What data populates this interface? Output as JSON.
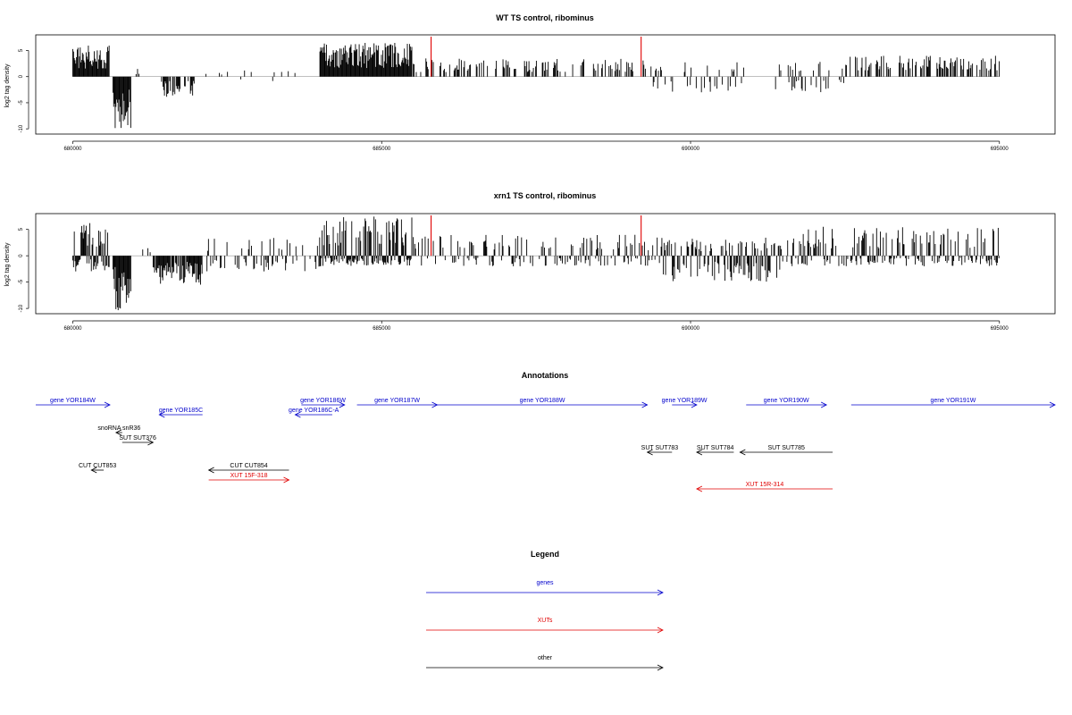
{
  "chart_data": [
    {
      "type": "bar",
      "title": "WT TS control, ribominus",
      "ylabel": "log2 tag density",
      "xlabel": "",
      "xlim": [
        679400,
        695900
      ],
      "ylim": [
        -11,
        8
      ],
      "xticks": [
        680000,
        685000,
        690000,
        695000
      ],
      "yticks": [
        -10,
        -5,
        0,
        5
      ],
      "grid": false,
      "markers": [
        {
          "x": 685800,
          "color": "#e00000"
        },
        {
          "x": 689200,
          "color": "#e00000"
        }
      ],
      "profile": [
        {
          "start": 680000,
          "end": 680600,
          "min": -0.5,
          "max": 6,
          "density": 1
        },
        {
          "start": 680650,
          "end": 680950,
          "min": -10,
          "max": 1.5,
          "density": 1
        },
        {
          "start": 681000,
          "end": 681300,
          "min": -0.3,
          "max": 1.5,
          "density": 0.12
        },
        {
          "start": 681400,
          "end": 682000,
          "min": -4,
          "max": 1,
          "density": 0.6
        },
        {
          "start": 682000,
          "end": 684000,
          "min": -1,
          "max": 1.5,
          "density": 0.04
        },
        {
          "start": 684000,
          "end": 685500,
          "min": -0.5,
          "max": 6.5,
          "density": 1
        },
        {
          "start": 685500,
          "end": 689300,
          "min": -0.3,
          "max": 3.5,
          "density": 0.3
        },
        {
          "start": 689300,
          "end": 689600,
          "min": -3.2,
          "max": 2,
          "density": 0.4
        },
        {
          "start": 689600,
          "end": 692500,
          "min": -3,
          "max": 3,
          "density": 0.22
        },
        {
          "start": 692500,
          "end": 695000,
          "min": -0.2,
          "max": 4,
          "density": 0.45
        }
      ]
    },
    {
      "type": "bar",
      "title": "xrn1 TS control, ribominus",
      "ylabel": "log2 tag density",
      "xlabel": "",
      "xlim": [
        679400,
        695900
      ],
      "ylim": [
        -11,
        8
      ],
      "xticks": [
        680000,
        685000,
        690000,
        695000
      ],
      "yticks": [
        -10,
        -5,
        0,
        5
      ],
      "grid": false,
      "markers": [
        {
          "x": 685800,
          "color": "#e00000"
        },
        {
          "x": 689200,
          "color": "#e00000"
        }
      ],
      "profile": [
        {
          "start": 680000,
          "end": 680600,
          "min": -3,
          "max": 6.5,
          "density": 1
        },
        {
          "start": 680650,
          "end": 680950,
          "min": -10.5,
          "max": 1.5,
          "density": 1
        },
        {
          "start": 681000,
          "end": 681300,
          "min": -0.5,
          "max": 1.5,
          "density": 0.2
        },
        {
          "start": 681300,
          "end": 682100,
          "min": -5.5,
          "max": 1.5,
          "density": 0.9
        },
        {
          "start": 682100,
          "end": 684000,
          "min": -3,
          "max": 3.5,
          "density": 0.3
        },
        {
          "start": 684000,
          "end": 685500,
          "min": -2,
          "max": 7.5,
          "density": 1
        },
        {
          "start": 685500,
          "end": 689500,
          "min": -2,
          "max": 4,
          "density": 0.45
        },
        {
          "start": 689500,
          "end": 691500,
          "min": -5,
          "max": 3.5,
          "density": 0.7
        },
        {
          "start": 691500,
          "end": 695000,
          "min": -2,
          "max": 5.5,
          "density": 0.6
        }
      ]
    }
  ],
  "annotations": {
    "title": "Annotations",
    "xlim": [
      679400,
      695900
    ],
    "features": [
      {
        "label": "gene YOR184W",
        "kind": "gene",
        "color": "#0000cc",
        "start": 679400,
        "end": 680600,
        "strand": "+",
        "row": 0
      },
      {
        "label": "gene YOR185C",
        "kind": "gene",
        "color": "#0000cc",
        "start": 681400,
        "end": 682100,
        "strand": "-",
        "row": 1
      },
      {
        "label": "gene YOR186W",
        "kind": "gene",
        "color": "#0000cc",
        "start": 683700,
        "end": 684400,
        "strand": "+",
        "row": 0
      },
      {
        "label": "gene YOR186C-A",
        "kind": "gene",
        "color": "#0000cc",
        "start": 683600,
        "end": 684200,
        "strand": "-",
        "row": 1
      },
      {
        "label": "gene YOR187W",
        "kind": "gene",
        "color": "#0000cc",
        "start": 684600,
        "end": 685900,
        "strand": "+",
        "row": 0
      },
      {
        "label": "gene YOR188W",
        "kind": "gene",
        "color": "#0000cc",
        "start": 685900,
        "end": 689300,
        "strand": "+",
        "row": 0
      },
      {
        "label": "gene YOR189W",
        "kind": "gene",
        "color": "#0000cc",
        "start": 689700,
        "end": 690100,
        "strand": "+",
        "row": 0
      },
      {
        "label": "gene YOR190W",
        "kind": "gene",
        "color": "#0000cc",
        "start": 690900,
        "end": 692200,
        "strand": "+",
        "row": 0
      },
      {
        "label": "gene YOR191W",
        "kind": "gene",
        "color": "#0000cc",
        "start": 692600,
        "end": 695900,
        "strand": "+",
        "row": 0
      },
      {
        "label": "snoRNA snR36",
        "kind": "other",
        "color": "#000000",
        "start": 680700,
        "end": 680800,
        "strand": "-",
        "row": 2
      },
      {
        "label": "SUT SUT376",
        "kind": "other",
        "color": "#000000",
        "start": 680800,
        "end": 681300,
        "strand": "+",
        "row": 3
      },
      {
        "label": "CUT CUT853",
        "kind": "other",
        "color": "#000000",
        "start": 680300,
        "end": 680500,
        "strand": "-",
        "row": 5
      },
      {
        "label": "CUT CUT854",
        "kind": "other",
        "color": "#000000",
        "start": 682200,
        "end": 683500,
        "strand": "-",
        "row": 5
      },
      {
        "label": "XUT 15F-318",
        "kind": "xut",
        "color": "#e00000",
        "start": 682200,
        "end": 683500,
        "strand": "+",
        "row": 6
      },
      {
        "label": "SUT SUT783",
        "kind": "other",
        "color": "#000000",
        "start": 689300,
        "end": 689700,
        "strand": "-",
        "row": 4
      },
      {
        "label": "SUT SUT784",
        "kind": "other",
        "color": "#000000",
        "start": 690100,
        "end": 690700,
        "strand": "-",
        "row": 4
      },
      {
        "label": "SUT SUT785",
        "kind": "other",
        "color": "#000000",
        "start": 690800,
        "end": 692300,
        "strand": "-",
        "row": 4
      },
      {
        "label": "XUT 15R-314",
        "kind": "xut",
        "color": "#e00000",
        "start": 690100,
        "end": 692300,
        "strand": "-",
        "row": 8
      }
    ]
  },
  "legend": {
    "title": "Legend",
    "items": [
      {
        "label": "genes",
        "color": "#0000cc"
      },
      {
        "label": "XUTs",
        "color": "#e00000"
      },
      {
        "label": "other",
        "color": "#000000"
      }
    ]
  }
}
